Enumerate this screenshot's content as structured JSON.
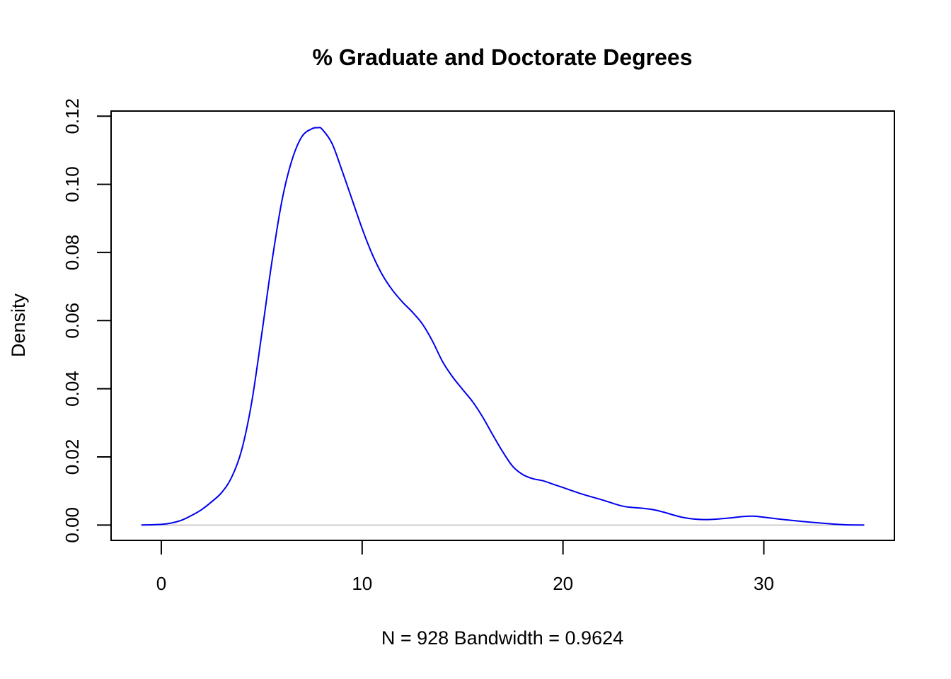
{
  "chart_data": {
    "type": "line",
    "title": "% Graduate and Doctorate Degrees",
    "xlabel": "N = 928   Bandwidth = 0.9624",
    "ylabel": "Density",
    "xlim": [
      -2.5,
      36.5
    ],
    "ylim": [
      -0.0045,
      0.1215
    ],
    "x_ticks": [
      0,
      10,
      20,
      30
    ],
    "x_tick_labels": [
      "0",
      "10",
      "20",
      "30"
    ],
    "y_ticks": [
      0,
      0.02,
      0.04,
      0.06,
      0.08,
      0.1,
      0.12
    ],
    "y_tick_labels": [
      "0.00",
      "0.02",
      "0.04",
      "0.06",
      "0.08",
      "0.10",
      "0.12"
    ],
    "grid": false,
    "legend": "none",
    "series": [
      {
        "color": "#0000ee",
        "x": [
          -1.0,
          0.0,
          0.5,
          1.0,
          1.5,
          2.0,
          2.5,
          3.0,
          3.5,
          4.0,
          4.5,
          5.0,
          5.5,
          6.0,
          6.5,
          7.0,
          7.5,
          7.8,
          8.0,
          8.5,
          9.0,
          9.5,
          10.0,
          10.5,
          11.0,
          11.5,
          12.0,
          12.5,
          13.0,
          13.5,
          14.0,
          14.5,
          15.0,
          15.5,
          16.0,
          16.5,
          17.0,
          17.5,
          18.0,
          18.5,
          19.0,
          19.5,
          20.0,
          21.0,
          22.0,
          23.0,
          24.0,
          24.5,
          25.0,
          26.0,
          27.0,
          28.0,
          29.0,
          29.5,
          30.0,
          31.0,
          32.0,
          33.0,
          34.0,
          35.0
        ],
        "y": [
          0.0,
          0.0002,
          0.0006,
          0.0014,
          0.0028,
          0.0045,
          0.0068,
          0.0095,
          0.014,
          0.022,
          0.036,
          0.056,
          0.077,
          0.095,
          0.107,
          0.114,
          0.1163,
          0.1166,
          0.1162,
          0.112,
          0.104,
          0.0955,
          0.087,
          0.0795,
          0.0735,
          0.069,
          0.0655,
          0.0625,
          0.059,
          0.054,
          0.048,
          0.0435,
          0.0398,
          0.0362,
          0.0317,
          0.0265,
          0.0215,
          0.0172,
          0.0148,
          0.0136,
          0.013,
          0.012,
          0.011,
          0.009,
          0.0073,
          0.0055,
          0.0049,
          0.0045,
          0.0038,
          0.0022,
          0.0016,
          0.0019,
          0.0025,
          0.0026,
          0.0023,
          0.0016,
          0.001,
          0.0005,
          0.0001,
          0.0
        ]
      }
    ]
  }
}
